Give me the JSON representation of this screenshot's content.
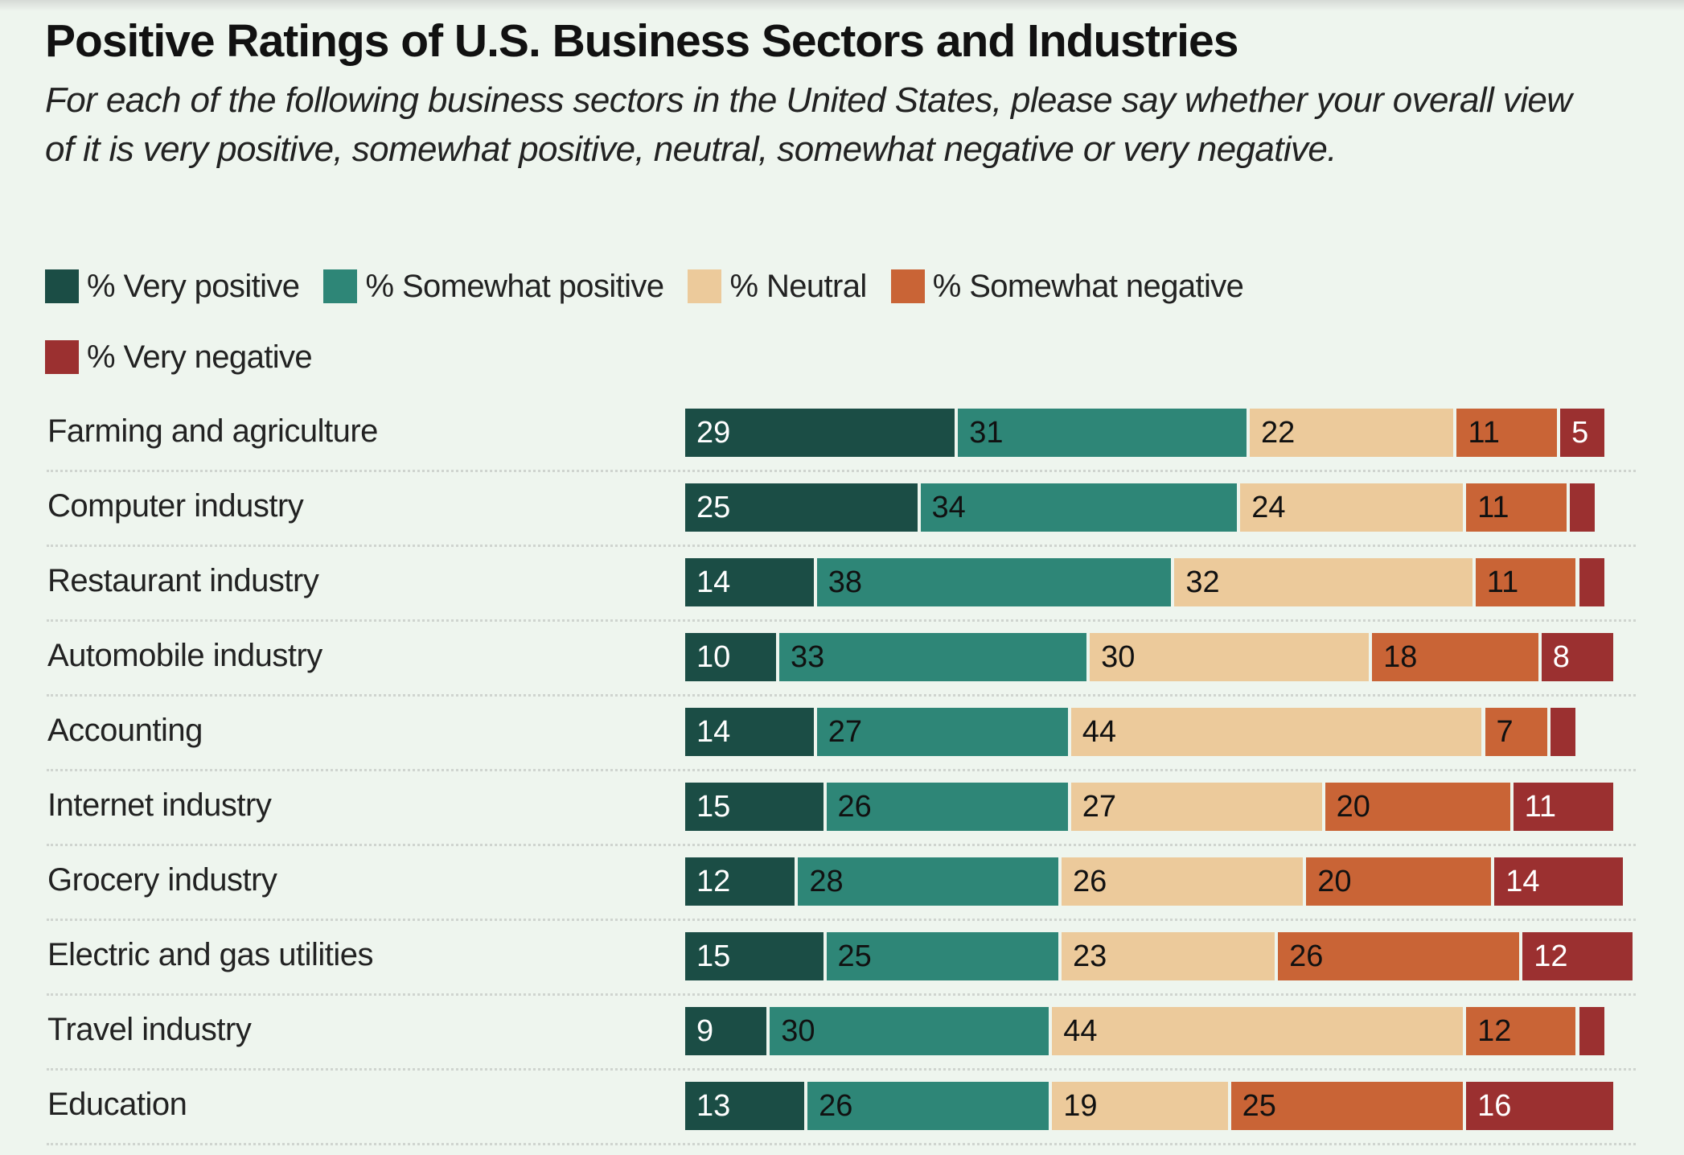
{
  "chart_data": {
    "type": "bar",
    "orientation": "horizontal",
    "stacked": true,
    "title": "Positive Ratings of U.S. Business Sectors and Industries",
    "subtitle": "For each of the following business sectors in the United States, please say whether your overall view of it is very positive, somewhat positive, neutral, somewhat negative or very negative.",
    "xlabel": "",
    "ylabel": "",
    "legend_position": "top-left",
    "grid": false,
    "categories": [
      "Farming and agriculture",
      "Computer industry",
      "Restaurant industry",
      "Automobile industry",
      "Accounting",
      "Internet industry",
      "Grocery industry",
      "Electric and gas utilities",
      "Travel industry",
      "Education"
    ],
    "series": [
      {
        "name": "% Very positive",
        "color": "#1b4d45",
        "label_color": "#ffffff",
        "values": [
          29,
          25,
          14,
          10,
          14,
          15,
          12,
          15,
          9,
          13
        ],
        "labels": [
          "29",
          "25",
          "14",
          "10",
          "14",
          "15",
          "12",
          "15",
          "9",
          "13"
        ]
      },
      {
        "name": "% Somewhat positive",
        "color": "#2e8677",
        "label_color": "#111111",
        "values": [
          31,
          34,
          38,
          33,
          27,
          26,
          28,
          25,
          30,
          26
        ],
        "labels": [
          "31",
          "34",
          "38",
          "33",
          "27",
          "26",
          "28",
          "25",
          "30",
          "26"
        ]
      },
      {
        "name": "% Neutral",
        "color": "#ecca9b",
        "label_color": "#111111",
        "values": [
          22,
          24,
          32,
          30,
          44,
          27,
          26,
          23,
          44,
          19
        ],
        "labels": [
          "22",
          "24",
          "32",
          "30",
          "44",
          "27",
          "26",
          "23",
          "44",
          "19"
        ]
      },
      {
        "name": "% Somewhat negative",
        "color": "#c96436",
        "label_color": "#111111",
        "values": [
          11,
          11,
          11,
          18,
          7,
          20,
          20,
          26,
          12,
          25
        ],
        "labels": [
          "11",
          "11",
          "11",
          "18",
          "7",
          "20",
          "20",
          "26",
          "12",
          "25"
        ]
      },
      {
        "name": "% Very negative",
        "color": "#9b3030",
        "label_color": "#ffffff",
        "values": [
          5,
          3,
          3,
          8,
          3,
          11,
          14,
          12,
          3,
          16
        ],
        "labels": [
          "5",
          "",
          "",
          "8",
          "",
          "11",
          "14",
          "12",
          "",
          "16"
        ]
      }
    ]
  }
}
